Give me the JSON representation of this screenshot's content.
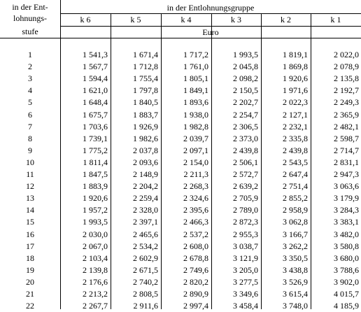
{
  "header": {
    "stufe_label": [
      "in der Ent-",
      "lohnungs-",
      "stufe"
    ],
    "group_label": "in der Entlohnungsgruppe",
    "groups": [
      "k 6",
      "k 5",
      "k 4",
      "k 3",
      "k 2",
      "k 1"
    ],
    "currency": "Euro"
  },
  "rows": [
    {
      "stufe": "1",
      "values": [
        "1 541,3",
        "1 671,4",
        "1 717,2",
        "1 993,5",
        "1 819,1",
        "2 022,0"
      ]
    },
    {
      "stufe": "2",
      "values": [
        "1 567,7",
        "1 712,8",
        "1 761,0",
        "2 045,8",
        "1 869,8",
        "2 078,9"
      ]
    },
    {
      "stufe": "3",
      "values": [
        "1 594,4",
        "1 755,4",
        "1 805,1",
        "2 098,2",
        "1 920,6",
        "2 135,8"
      ]
    },
    {
      "stufe": "4",
      "values": [
        "1 621,0",
        "1 797,8",
        "1 849,1",
        "2 150,5",
        "1 971,6",
        "2 192,7"
      ]
    },
    {
      "stufe": "5",
      "values": [
        "1 648,4",
        "1 840,5",
        "1 893,6",
        "2 202,7",
        "2 022,3",
        "2 249,3"
      ]
    },
    {
      "stufe": "6",
      "values": [
        "1 675,7",
        "1 883,7",
        "1 938,0",
        "2 254,7",
        "2 127,1",
        "2 365,9"
      ]
    },
    {
      "stufe": "7",
      "values": [
        "1 703,6",
        "1 926,9",
        "1 982,8",
        "2 306,5",
        "2 232,1",
        "2 482,1"
      ]
    },
    {
      "stufe": "8",
      "values": [
        "1 739,1",
        "1 982,6",
        "2 039,7",
        "2 373,0",
        "2 335,8",
        "2 598,7"
      ]
    },
    {
      "stufe": "9",
      "values": [
        "1 775,2",
        "2 037,8",
        "2 097,1",
        "2 439,8",
        "2 439,8",
        "2 714,7"
      ]
    },
    {
      "stufe": "10",
      "values": [
        "1 811,4",
        "2 093,6",
        "2 154,0",
        "2 506,1",
        "2 543,5",
        "2 831,1"
      ]
    },
    {
      "stufe": "11",
      "values": [
        "1 847,5",
        "2 148,9",
        "2 211,3",
        "2 572,7",
        "2 647,4",
        "2 947,3"
      ]
    },
    {
      "stufe": "12",
      "values": [
        "1 883,9",
        "2 204,2",
        "2 268,3",
        "2 639,2",
        "2 751,4",
        "3 063,6"
      ]
    },
    {
      "stufe": "13",
      "values": [
        "1 920,6",
        "2 259,4",
        "2 324,6",
        "2 705,9",
        "2 855,2",
        "3 179,9"
      ]
    },
    {
      "stufe": "14",
      "values": [
        "1 957,2",
        "2 328,0",
        "2 395,6",
        "2 789,0",
        "2 958,9",
        "3 284,3"
      ]
    },
    {
      "stufe": "15",
      "values": [
        "1 993,5",
        "2 397,1",
        "2 466,3",
        "2 872,3",
        "3 062,8",
        "3 383,1"
      ]
    },
    {
      "stufe": "16",
      "values": [
        "2 030,0",
        "2 465,6",
        "2 537,2",
        "2 955,3",
        "3 166,7",
        "3 482,0"
      ]
    },
    {
      "stufe": "17",
      "values": [
        "2 067,0",
        "2 534,2",
        "2 608,0",
        "3 038,7",
        "3 262,2",
        "3 580,8"
      ]
    },
    {
      "stufe": "18",
      "values": [
        "2 103,4",
        "2 602,9",
        "2 678,8",
        "3 121,9",
        "3 350,5",
        "3 680,0"
      ]
    },
    {
      "stufe": "19",
      "values": [
        "2 139,8",
        "2 671,5",
        "2 749,6",
        "3 205,0",
        "3 438,8",
        "3 788,6"
      ]
    },
    {
      "stufe": "20",
      "values": [
        "2 176,6",
        "2 740,2",
        "2 820,2",
        "3 277,5",
        "3 526,9",
        "3 902,0"
      ]
    },
    {
      "stufe": "21",
      "values": [
        "2 213,2",
        "2 808,5",
        "2 890,9",
        "3 349,6",
        "3 615,4",
        "4 015,7"
      ]
    },
    {
      "stufe": "22",
      "values": [
        "2 267,7",
        "2 911,6",
        "2 997,4",
        "3 458,4",
        "3 748,0",
        "4 185,9"
      ]
    }
  ]
}
